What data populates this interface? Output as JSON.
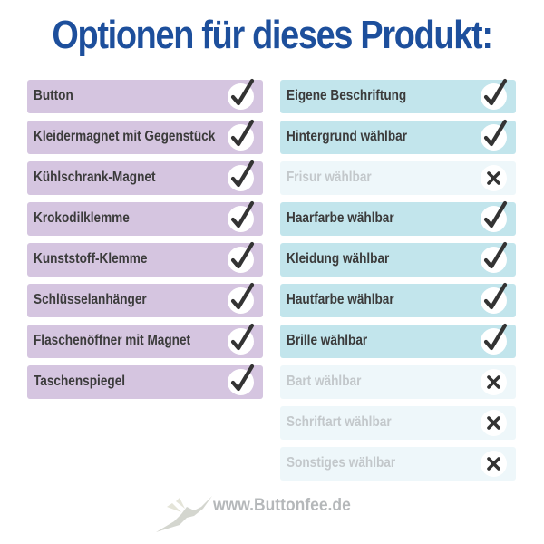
{
  "title": "Optionen für dieses Produkt:",
  "colors": {
    "title": "#1d4f9c",
    "product_bg": "#d5c5e0",
    "option_yes_bg": "#c2e5ec",
    "option_no_bg": "#eef7fa"
  },
  "products": [
    {
      "label": "Button",
      "available": true
    },
    {
      "label": "Kleidermagnet mit Gegenstück",
      "available": true
    },
    {
      "label": "Kühlschrank-Magnet",
      "available": true
    },
    {
      "label": "Krokodilklemme",
      "available": true
    },
    {
      "label": "Kunststoff-Klemme",
      "available": true
    },
    {
      "label": "Schlüsselanhänger",
      "available": true
    },
    {
      "label": "Flaschenöffner mit Magnet",
      "available": true
    },
    {
      "label": "Taschenspiegel",
      "available": true
    }
  ],
  "options": [
    {
      "label": "Eigene Beschriftung",
      "available": true
    },
    {
      "label": "Hintergrund wählbar",
      "available": true
    },
    {
      "label": "Frisur wählbar",
      "available": false
    },
    {
      "label": "Haarfarbe wählbar",
      "available": true
    },
    {
      "label": "Kleidung wählbar",
      "available": true
    },
    {
      "label": "Hautfarbe wählbar",
      "available": true
    },
    {
      "label": "Brille wählbar",
      "available": true
    },
    {
      "label": "Bart wählbar",
      "available": false
    },
    {
      "label": "Schriftart wählbar",
      "available": false
    },
    {
      "label": "Sonstiges wählbar",
      "available": false
    }
  ],
  "footer": {
    "url": "www.Buttonfee.de",
    "logo_icon": "fairy-icon"
  }
}
